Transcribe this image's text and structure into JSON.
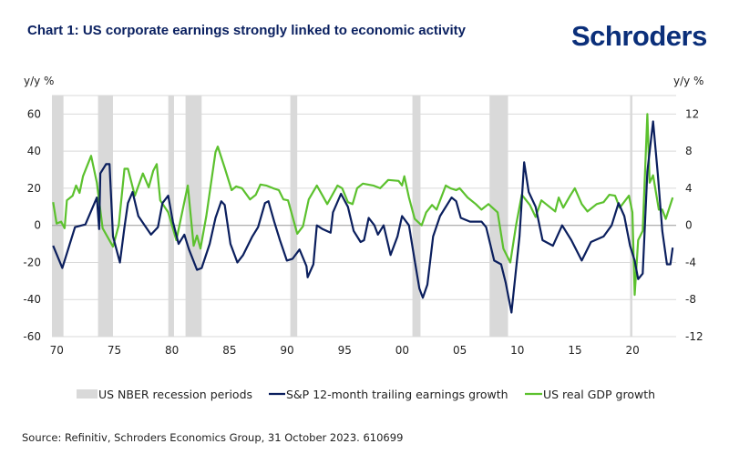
{
  "title": "Chart 1: US corporate earnings strongly linked to economic activity",
  "logo": "Schroders",
  "source": "Source: Refinitiv, Schroders Economics Group, 31 October 2023. 610699",
  "colors": {
    "earnings": "#0b1f5e",
    "gdp": "#5cc12e",
    "recession": "#d9d9d9",
    "title": "#0b2161",
    "logo": "#0b2f7a"
  },
  "chart_data": {
    "type": "line",
    "title": "Chart 1: US corporate earnings strongly linked to economic activity",
    "ylabel_left": "y/y %",
    "ylabel_right": "y/y %",
    "xlim": [
      1969.9,
      2024.1
    ],
    "ylim_left": [
      -60,
      70
    ],
    "ylim_right": [
      -12,
      14
    ],
    "yticks_left": [
      "60",
      "40",
      "20",
      "0",
      "-20",
      "-40",
      "-60"
    ],
    "yticks_left_values": [
      60,
      40,
      20,
      0,
      -20,
      -40,
      -60
    ],
    "yticks_right": [
      "12",
      "8",
      "4",
      "0",
      "-4",
      "-8",
      "-12"
    ],
    "yticks_right_values": [
      12,
      8,
      4,
      0,
      -4,
      -8,
      -12
    ],
    "xticks": [
      "70",
      "75",
      "80",
      "85",
      "90",
      "95",
      "00",
      "05",
      "10",
      "15",
      "20"
    ],
    "xticks_values": [
      1970,
      1975,
      1980,
      1985,
      1990,
      1995,
      2000,
      2005,
      2010,
      2015,
      2020
    ],
    "grid": "horizontal",
    "legend_position": "bottom",
    "legend": [
      "US NBER recession periods",
      "S&P 12-month trailing earnings growth",
      "US real GDP growth"
    ],
    "recessions": [
      [
        1969.9,
        1970.9
      ],
      [
        1973.9,
        1975.2
      ],
      [
        1980.0,
        1980.5
      ],
      [
        1981.5,
        1982.9
      ],
      [
        1990.6,
        1991.2
      ],
      [
        2001.2,
        2001.9
      ],
      [
        2007.9,
        2009.5
      ],
      [
        2020.1,
        2020.3
      ]
    ],
    "series": [
      {
        "name": "S&P 12-month trailing earnings growth",
        "axis": "left",
        "x": [
          1970,
          1970.8,
          1971.9,
          1972.8,
          1973.8,
          1974.0,
          1974.1,
          1974.6,
          1974.9,
          1975.2,
          1975.8,
          1976.2,
          1976.5,
          1976.9,
          1977.4,
          1978.5,
          1979.1,
          1979.5,
          1980,
          1980.4,
          1980.9,
          1981.4,
          1981.8,
          1982.5,
          1982.9,
          1983.6,
          1984.1,
          1984.6,
          1984.9,
          1985.4,
          1986,
          1986.5,
          1987.3,
          1987.8,
          1988.4,
          1988.7,
          1989.2,
          1989.7,
          1990.3,
          1990.8,
          1991.4,
          1992,
          1992.1,
          1992.6,
          1992.9,
          1993.4,
          1994.1,
          1994.3,
          1995,
          1995.6,
          1996.1,
          1996.7,
          1997,
          1997.4,
          1997.9,
          1998.2,
          1998.7,
          1999.3,
          1999.9,
          2000.3,
          2000.9,
          2001.4,
          2001.8,
          2002.1,
          2002.5,
          2003,
          2003.6,
          2004.6,
          2005,
          2005.4,
          2006.2,
          2007.2,
          2007.6,
          2008.3,
          2008.9,
          2009.3,
          2009.8,
          2010.5,
          2010.9,
          2011.3,
          2011.9,
          2012.5,
          2013.4,
          2014.2,
          2015,
          2015.9,
          2016.7,
          2017.8,
          2018.5,
          2019.1,
          2019.6,
          2020.1,
          2020.5,
          2020.8,
          2021.2,
          2021.6,
          2022.1,
          2022.5,
          2022.9,
          2023.3,
          2023.6,
          2023.8
        ],
        "values": [
          -11,
          -23,
          -1,
          0.5,
          15,
          -2,
          28,
          33,
          33,
          -6,
          -20,
          -1,
          12,
          18,
          5,
          -5,
          -1,
          12,
          16,
          2,
          -10,
          -5,
          -13,
          -24,
          -23,
          -10,
          4,
          13,
          11,
          -10,
          -20,
          -16,
          -6,
          -1,
          12,
          13,
          2,
          -8,
          -19,
          -18,
          -13,
          -22,
          -28,
          -21,
          0,
          -2,
          -4,
          7,
          17,
          10,
          -3,
          -9,
          -8,
          4,
          0,
          -5,
          0,
          -16,
          -6,
          5,
          0,
          -19,
          -34,
          -39,
          -32,
          -6,
          5,
          15,
          13,
          4,
          2,
          2,
          -1,
          -19,
          -21,
          -31,
          -47,
          -6,
          34,
          18,
          10,
          -8,
          -11,
          0,
          -8,
          -19,
          -9,
          -6,
          0,
          12,
          5,
          -11,
          -19,
          -29,
          -26,
          29,
          56,
          28,
          -3,
          -21,
          -21,
          -12
        ]
      },
      {
        "name": "US real GDP growth",
        "axis": "right",
        "x": [
          1970,
          1970.3,
          1970.7,
          1971,
          1971.2,
          1971.7,
          1972,
          1972.3,
          1972.6,
          1973.3,
          1973.8,
          1974.3,
          1975.2,
          1975.7,
          1976.2,
          1976.5,
          1977.1,
          1977.8,
          1978.3,
          1978.7,
          1979,
          1979.3,
          1980,
          1980.7,
          1981.7,
          1982.2,
          1982.5,
          1982.8,
          1983.3,
          1984.1,
          1984.3,
          1984.9,
          1985.5,
          1985.9,
          1986.4,
          1987.1,
          1987.6,
          1988,
          1988.5,
          1989.1,
          1989.6,
          1990,
          1990.4,
          1991.2,
          1991.7,
          1992.2,
          1992.9,
          1993.4,
          1993.8,
          1994.7,
          1995.1,
          1995.6,
          1996,
          1996.4,
          1996.9,
          1997.8,
          1998.4,
          1999.1,
          2000,
          2000.3,
          2000.5,
          2000.9,
          2001.4,
          2002,
          2002.4,
          2002.9,
          2003.3,
          2004.1,
          2004.5,
          2005,
          2005.3,
          2006,
          2006.7,
          2007.2,
          2007.8,
          2008.6,
          2009.1,
          2009.7,
          2010.2,
          2010.7,
          2011.4,
          2011.9,
          2012.4,
          2012.8,
          2013.6,
          2013.9,
          2014.3,
          2014.9,
          2015.3,
          2015.9,
          2016.4,
          2017.2,
          2017.8,
          2018.3,
          2018.8,
          2019.2,
          2020,
          2020.3,
          2020.5,
          2020.8,
          2021.2,
          2021.6,
          2021.8,
          2022.1,
          2022.6,
          2022.9,
          2023.2,
          2023.8
        ],
        "values": [
          2.5,
          0.2,
          0.4,
          -0.3,
          2.7,
          3.2,
          4.3,
          3.5,
          5.3,
          7.5,
          4.6,
          -0.3,
          -2.3,
          0,
          6.1,
          6.1,
          3.2,
          5.6,
          4.1,
          5.9,
          6.6,
          2.7,
          1.4,
          -1.6,
          4.3,
          -2.2,
          -1.1,
          -2.5,
          1,
          7.9,
          8.5,
          6.2,
          3.8,
          4.2,
          4.0,
          2.8,
          3.3,
          4.4,
          4.3,
          4.0,
          3.8,
          2.8,
          2.7,
          -0.9,
          -0.1,
          2.8,
          4.3,
          3.2,
          2.3,
          4.3,
          4.0,
          2.5,
          2.3,
          4.0,
          4.5,
          4.3,
          4.0,
          4.9,
          4.8,
          4.3,
          5.3,
          3.0,
          0.7,
          0,
          1.4,
          2.2,
          1.7,
          4.3,
          4.0,
          3.8,
          4.0,
          3.0,
          2.3,
          1.7,
          2.3,
          1.4,
          -2.5,
          -4,
          0,
          3.3,
          2.2,
          0.9,
          2.7,
          2.3,
          1.5,
          3.0,
          1.9,
          3.2,
          4.0,
          2.3,
          1.5,
          2.3,
          2.5,
          3.3,
          3.2,
          1.9,
          3.2,
          1.4,
          -7.5,
          -1.6,
          -0.6,
          12,
          4.6,
          5.4,
          1.7,
          1.7,
          0.7,
          3.0
        ]
      }
    ]
  }
}
